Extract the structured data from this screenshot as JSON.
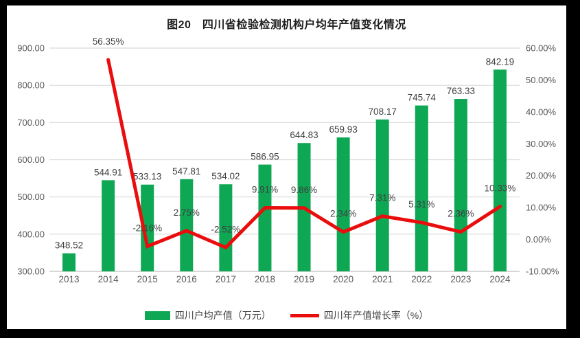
{
  "title": "图20　四川省检验检测机构户均年产值变化情况",
  "chart_data": {
    "type": "combo-bar-line",
    "title": "图20　四川省检验检测机构户均年产值变化情况",
    "categories": [
      "2013",
      "2014",
      "2015",
      "2016",
      "2017",
      "2018",
      "2019",
      "2020",
      "2021",
      "2022",
      "2023",
      "2024"
    ],
    "series": [
      {
        "name": "四川户均产值（万元）",
        "type": "bar",
        "axis": "left",
        "color": "#0EA855",
        "data_labels": true,
        "values": [
          348.52,
          544.91,
          533.13,
          547.81,
          534.02,
          586.95,
          644.83,
          659.93,
          708.17,
          745.74,
          763.33,
          842.19
        ]
      },
      {
        "name": "四川年产值增长率（%）",
        "type": "line",
        "axis": "right",
        "color": "#EA0D0D",
        "data_labels": true,
        "values": [
          null,
          56.35,
          -2.16,
          2.75,
          -2.52,
          9.91,
          9.86,
          2.34,
          7.31,
          5.31,
          2.36,
          10.33
        ]
      }
    ],
    "left_axis": {
      "min": 300,
      "max": 900,
      "step": 100,
      "tick_labels": [
        "300.00",
        "400.00",
        "500.00",
        "600.00",
        "700.00",
        "800.00",
        "900.00"
      ]
    },
    "right_axis": {
      "min": -10,
      "max": 60,
      "step": 10,
      "tick_labels": [
        "-10.00%",
        "0.00%",
        "10.00%",
        "20.00%",
        "30.00%",
        "40.00%",
        "50.00%",
        "60.00%"
      ]
    },
    "grid": true,
    "legend_position": "bottom",
    "colors": {
      "grid_line": "#D9D9D9",
      "axis_line": "#BFBFBF",
      "tick_text": "#595959",
      "data_label_text": "#404040",
      "frame": "#000000",
      "plot_background": "#FFFFFF"
    }
  }
}
